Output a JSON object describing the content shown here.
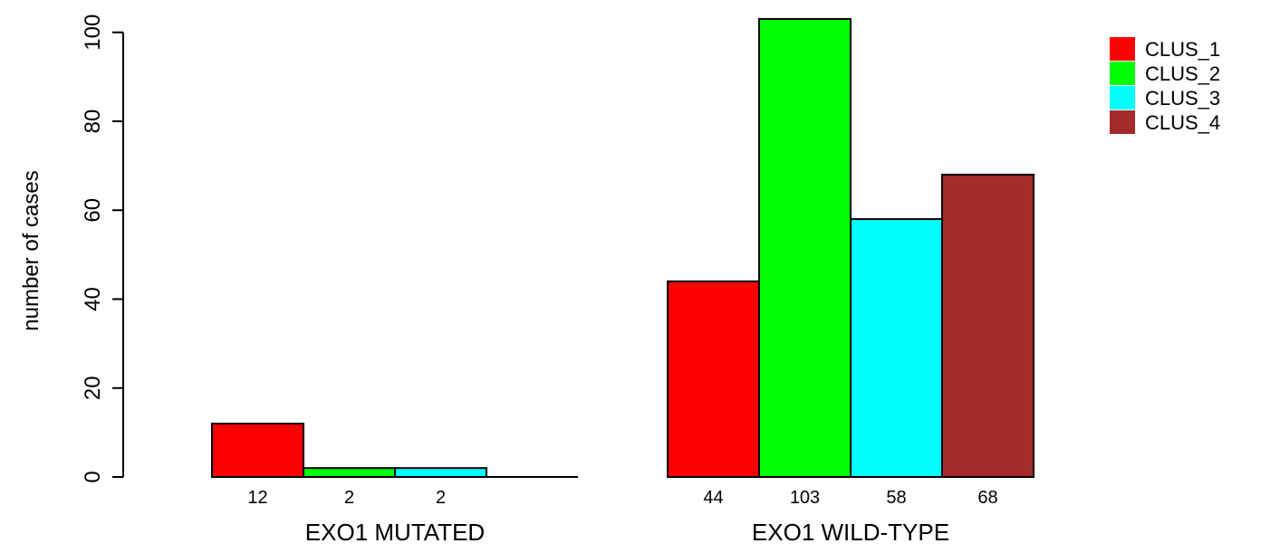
{
  "chart_data": {
    "type": "bar",
    "title": "",
    "xlabel": "",
    "ylabel": "number of cases",
    "ylim": [
      0,
      103
    ],
    "yticks": [
      0,
      20,
      40,
      60,
      80,
      100
    ],
    "grid": false,
    "legend_position": "top-right",
    "categories": [
      "EXO1 MUTATED",
      "EXO1 WILD-TYPE"
    ],
    "series": [
      {
        "name": "CLUS_1",
        "color": "#ff0000",
        "values": [
          12,
          44
        ],
        "labels": [
          "12",
          "44"
        ]
      },
      {
        "name": "CLUS_2",
        "color": "#00ff00",
        "values": [
          2,
          103
        ],
        "labels": [
          "2",
          "103"
        ]
      },
      {
        "name": "CLUS_3",
        "color": "#00ffff",
        "values": [
          2,
          58
        ],
        "labels": [
          "2",
          "58"
        ]
      },
      {
        "name": "CLUS_4",
        "color": "#a52a2a",
        "values": [
          0,
          68
        ],
        "labels": [
          "",
          "68"
        ]
      }
    ]
  }
}
